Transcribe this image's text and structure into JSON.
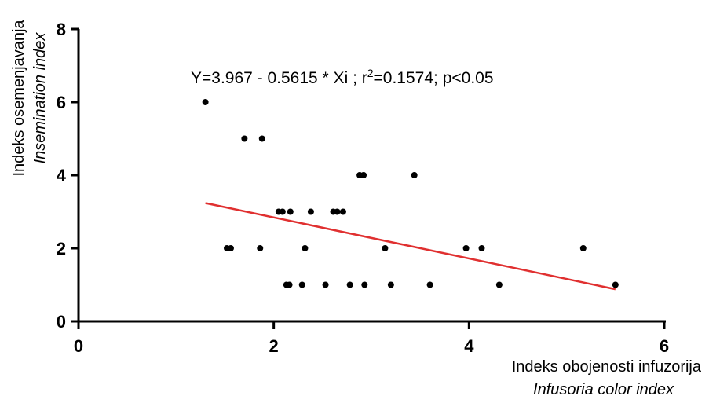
{
  "chart_data": {
    "type": "scatter",
    "title": "",
    "annotation": {
      "prefix": "Y=3.967 - 0.5615 * Xi ;  r",
      "sup": "2",
      "suffix": "=0.1574;   p<0.05"
    },
    "xlabel": [
      "Indeks obojenosti infuzorija",
      "Infusoria color index"
    ],
    "ylabel": [
      "Indeks osemenjavanja",
      "Insemination index"
    ],
    "xlim": [
      0,
      6
    ],
    "ylim": [
      0,
      8
    ],
    "xticks": [
      "0",
      "2",
      "4",
      "6"
    ],
    "yticks": [
      "0",
      "2",
      "4",
      "6",
      "8"
    ],
    "grid": false,
    "point_color": "#000000",
    "line_color": "#e03030",
    "regression": {
      "intercept": 3.967,
      "slope": -0.5615,
      "x_range": [
        1.3,
        5.5
      ]
    },
    "points": [
      {
        "x": 1.3,
        "y": 6
      },
      {
        "x": 1.52,
        "y": 2
      },
      {
        "x": 1.56,
        "y": 2
      },
      {
        "x": 1.7,
        "y": 5
      },
      {
        "x": 1.86,
        "y": 2
      },
      {
        "x": 1.88,
        "y": 5
      },
      {
        "x": 2.05,
        "y": 3
      },
      {
        "x": 2.09,
        "y": 3
      },
      {
        "x": 2.13,
        "y": 1
      },
      {
        "x": 2.16,
        "y": 1
      },
      {
        "x": 2.17,
        "y": 3
      },
      {
        "x": 2.29,
        "y": 1
      },
      {
        "x": 2.32,
        "y": 2
      },
      {
        "x": 2.38,
        "y": 3
      },
      {
        "x": 2.53,
        "y": 1
      },
      {
        "x": 2.61,
        "y": 3
      },
      {
        "x": 2.65,
        "y": 3
      },
      {
        "x": 2.71,
        "y": 3
      },
      {
        "x": 2.78,
        "y": 1
      },
      {
        "x": 2.88,
        "y": 4
      },
      {
        "x": 2.92,
        "y": 4
      },
      {
        "x": 2.93,
        "y": 1
      },
      {
        "x": 3.14,
        "y": 2
      },
      {
        "x": 3.2,
        "y": 1
      },
      {
        "x": 3.44,
        "y": 4
      },
      {
        "x": 3.6,
        "y": 1
      },
      {
        "x": 3.97,
        "y": 2
      },
      {
        "x": 4.13,
        "y": 2
      },
      {
        "x": 4.31,
        "y": 1
      },
      {
        "x": 5.17,
        "y": 2
      },
      {
        "x": 5.5,
        "y": 1
      }
    ]
  }
}
